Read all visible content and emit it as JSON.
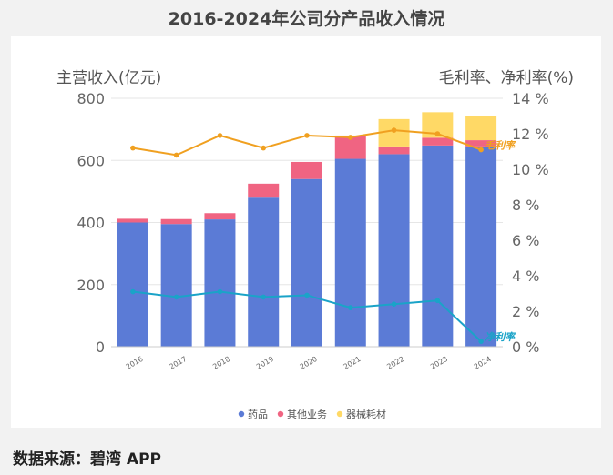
{
  "title": "2016-2024年公司分产品收入情况",
  "source": "数据来源：碧湾 APP",
  "chart_data": {
    "type": "bar",
    "stacked": true,
    "categories": [
      "2016",
      "2017",
      "2018",
      "2019",
      "2020",
      "2021",
      "2022",
      "2023",
      "2024"
    ],
    "series": [
      {
        "name": "药品",
        "color": "#5b7bd6",
        "values": [
          400,
          395,
          410,
          480,
          540,
          605,
          620,
          648,
          645
        ]
      },
      {
        "name": "其他业务",
        "color": "#f06482",
        "values": [
          12,
          16,
          20,
          45,
          55,
          75,
          25,
          25,
          20
        ]
      },
      {
        "name": "器械耗材",
        "color": "#ffd966",
        "values": [
          0,
          0,
          0,
          0,
          0,
          0,
          88,
          82,
          78
        ]
      }
    ],
    "lines": [
      {
        "name": "毛利率",
        "color": "#f0a020",
        "values": [
          11.2,
          10.8,
          11.9,
          11.2,
          11.9,
          11.8,
          12.2,
          12.0,
          11.1
        ]
      },
      {
        "name": "净利率",
        "color": "#1aa3c8",
        "values": [
          3.1,
          2.8,
          3.1,
          2.8,
          2.9,
          2.2,
          2.4,
          2.6,
          0.3
        ]
      }
    ],
    "y_left": {
      "label": "主营收入(亿元)",
      "ylim": [
        0,
        800
      ],
      "ticks": [
        0,
        200,
        400,
        600,
        800
      ]
    },
    "y_right": {
      "label": "毛利率、净利率(%)",
      "ylim": [
        0,
        14
      ],
      "ticks": [
        0,
        2,
        4,
        6,
        8,
        10,
        12,
        14
      ],
      "tick_suffix": " %"
    },
    "grid": true,
    "legend_position": "bottom-center"
  }
}
